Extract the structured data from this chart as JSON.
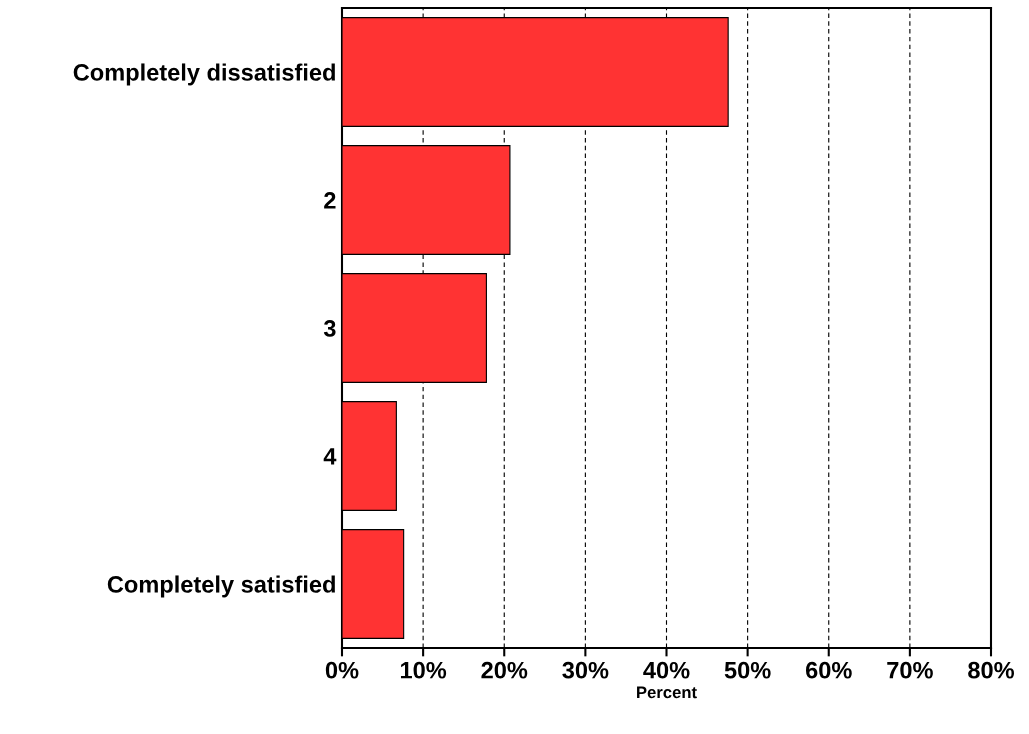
{
  "chart_data": {
    "type": "bar",
    "orientation": "horizontal",
    "xlabel": "Percent",
    "categories": [
      "Completely dissatisfied",
      "2",
      "3",
      "4",
      "Completely satisfied"
    ],
    "values": [
      47.6,
      20.7,
      17.8,
      6.7,
      7.6
    ],
    "color": "#ff3333",
    "xlim": [
      0,
      80
    ],
    "xticks": [
      {
        "value": 0,
        "label": "0%"
      },
      {
        "value": 10,
        "label": "10%"
      },
      {
        "value": 20,
        "label": "20%"
      },
      {
        "value": 30,
        "label": "30%"
      },
      {
        "value": 40,
        "label": "40%"
      },
      {
        "value": 50,
        "label": "50%"
      },
      {
        "value": 60,
        "label": "60%"
      },
      {
        "value": 70,
        "label": "70%"
      },
      {
        "value": 80,
        "label": "80%"
      }
    ],
    "grid": "x"
  }
}
